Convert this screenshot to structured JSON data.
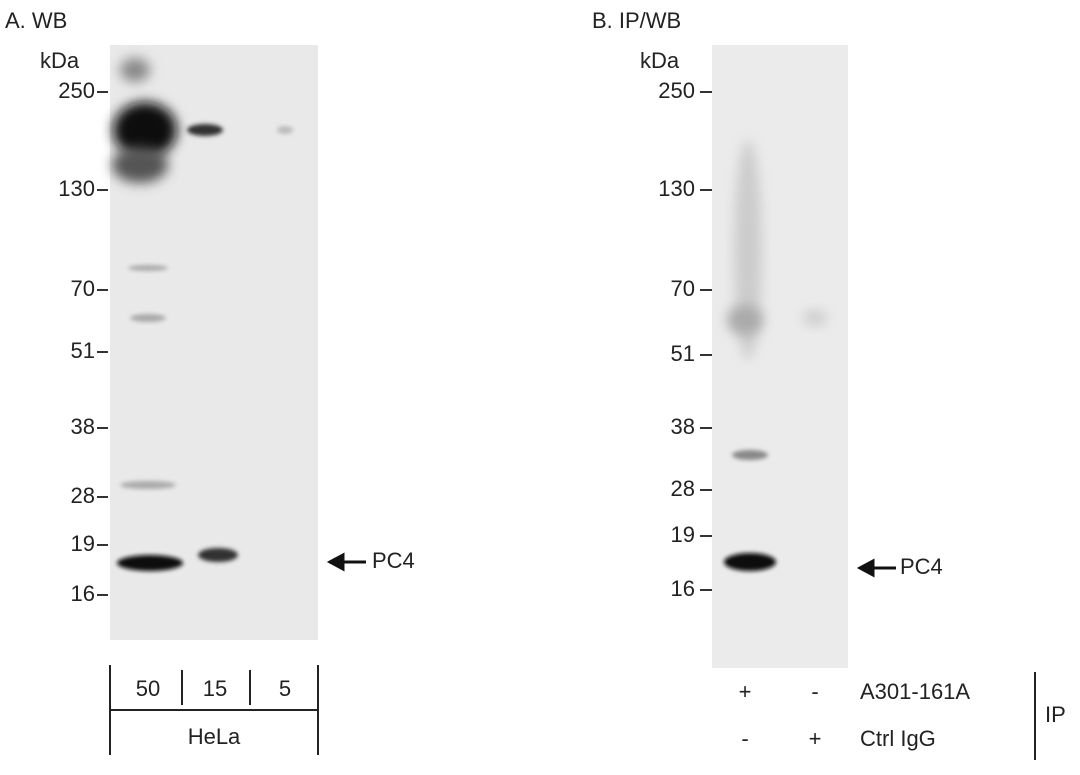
{
  "panels": [
    {
      "label": "A. WB",
      "unit": "kDa",
      "markers": [
        "250",
        "130",
        "70",
        "51",
        "38",
        "28",
        "19",
        "16"
      ],
      "target": "PC4",
      "lanes": [
        "50",
        "15",
        "5"
      ],
      "sample": "HeLa"
    },
    {
      "label": "B. IP/WB",
      "unit": "kDa",
      "markers": [
        "250",
        "130",
        "70",
        "51",
        "38",
        "28",
        "19",
        "16"
      ],
      "target": "PC4",
      "conditions": [
        {
          "signs": [
            "+",
            "-"
          ],
          "name": "A301-161A"
        },
        {
          "signs": [
            "-",
            "+"
          ],
          "name": "Ctrl IgG"
        }
      ],
      "group": "IP"
    }
  ]
}
